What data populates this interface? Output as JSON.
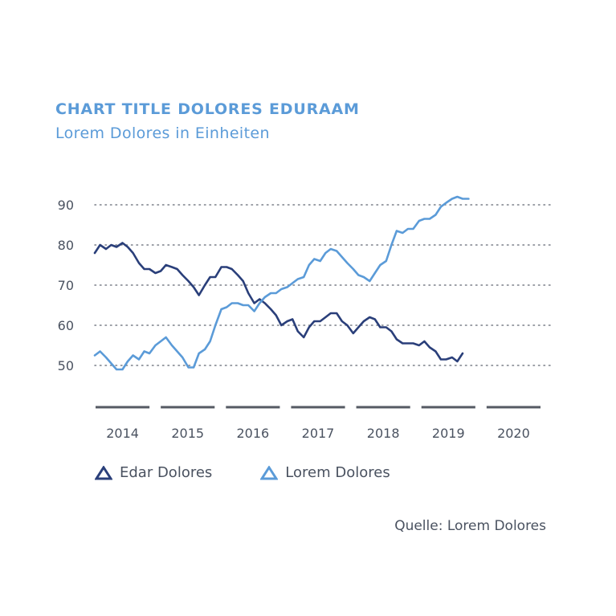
{
  "title": "CHART TITLE DOLORES EDURAAM",
  "subtitle": "Lorem Dolores in Einheiten",
  "source": "Quelle: Lorem Dolores",
  "colors": {
    "series1": "#2a3f7a",
    "series2": "#5b9bd8",
    "axis": "#4a5260",
    "grid": "#7a7f88"
  },
  "chart_data": {
    "type": "line",
    "title": "CHART TITLE DOLORES EDURAAM",
    "subtitle": "Lorem Dolores in Einheiten",
    "xlabel": "",
    "ylabel": "",
    "x_ticks": [
      "2014",
      "2015",
      "2016",
      "2017",
      "2018",
      "2019",
      "2020"
    ],
    "xlim": [
      2014.0,
      2020.92
    ],
    "y_ticks": [
      50,
      60,
      70,
      80,
      90
    ],
    "ylim": [
      40,
      95
    ],
    "grid": "horizontal dotted",
    "legend_position": "bottom",
    "series": [
      {
        "name": "Edar Dolores",
        "color": "#2a3f7a",
        "marker": "triangle",
        "x": [
          2014.0,
          2014.08,
          2014.17,
          2014.25,
          2014.33,
          2014.42,
          2014.5,
          2014.58,
          2014.67,
          2014.75,
          2014.83,
          2014.92,
          2015.0,
          2015.08,
          2015.17,
          2015.25,
          2015.33,
          2015.42,
          2015.5,
          2015.58,
          2015.67,
          2015.75,
          2015.83,
          2015.92,
          2016.0,
          2016.08,
          2016.17,
          2016.25,
          2016.33,
          2016.42,
          2016.5,
          2016.58,
          2016.67,
          2016.75,
          2016.83,
          2016.92,
          2017.0,
          2017.08,
          2017.17,
          2017.25,
          2017.33,
          2017.42,
          2017.5,
          2017.58,
          2017.67,
          2017.75,
          2017.83,
          2017.92,
          2018.0,
          2018.08,
          2018.17,
          2018.25,
          2018.33,
          2018.42,
          2018.5,
          2018.58,
          2018.67,
          2018.75,
          2018.83,
          2018.92,
          2019.0,
          2019.08,
          2019.17,
          2019.25,
          2019.33,
          2019.42,
          2019.5,
          2019.58,
          2019.67,
          2019.75,
          2019.83,
          2019.92,
          2020.0,
          2020.08,
          2020.17,
          2020.25,
          2020.33,
          2020.42,
          2020.5,
          2020.58,
          2020.67
        ],
        "values": [
          78.0,
          80.0,
          79.0,
          80.0,
          79.5,
          80.5,
          79.5,
          78.0,
          75.5,
          74.0,
          74.0,
          73.0,
          73.5,
          75.0,
          74.5,
          74.0,
          72.5,
          71.0,
          69.5,
          67.5,
          70.0,
          72.0,
          72.0,
          74.5,
          74.5,
          74.0,
          72.5,
          71.0,
          68.0,
          65.5,
          66.5,
          65.5,
          64.0,
          62.5,
          60.0,
          61.0,
          61.5,
          58.5,
          57.0,
          59.5,
          61.0,
          61.0,
          62.0,
          63.0,
          63.0,
          61.0,
          60.0,
          58.0,
          59.5,
          61.0,
          62.0,
          61.5,
          59.5,
          59.5,
          58.5,
          56.5,
          55.5,
          55.5,
          55.5,
          55.0,
          56.0,
          54.5,
          53.5,
          51.5,
          51.5,
          52.0,
          51.0,
          53.0,
          null,
          null,
          null,
          null,
          null,
          null,
          null,
          null,
          null,
          null,
          null,
          null,
          null
        ]
      },
      {
        "name": "Lorem Dolores",
        "color": "#5b9bd8",
        "marker": "triangle",
        "x": [
          2014.0,
          2014.08,
          2014.17,
          2014.25,
          2014.33,
          2014.42,
          2014.5,
          2014.58,
          2014.67,
          2014.75,
          2014.83,
          2014.92,
          2015.0,
          2015.08,
          2015.17,
          2015.25,
          2015.33,
          2015.42,
          2015.5,
          2015.58,
          2015.67,
          2015.75,
          2015.83,
          2015.92,
          2016.0,
          2016.08,
          2016.17,
          2016.25,
          2016.33,
          2016.42,
          2016.5,
          2016.58,
          2016.67,
          2016.75,
          2016.83,
          2016.92,
          2017.0,
          2017.08,
          2017.17,
          2017.25,
          2017.33,
          2017.42,
          2017.5,
          2017.58,
          2017.67,
          2017.75,
          2017.83,
          2017.92,
          2018.0,
          2018.08,
          2018.17,
          2018.25,
          2018.33,
          2018.42,
          2018.5,
          2018.58,
          2018.67,
          2018.75,
          2018.83,
          2018.92,
          2019.0,
          2019.08,
          2019.17,
          2019.25,
          2019.33,
          2019.42,
          2019.5,
          2019.58,
          2019.67,
          2019.75,
          2019.83,
          2019.92,
          2020.0,
          2020.08,
          2020.17,
          2020.25,
          2020.33,
          2020.42,
          2020.5,
          2020.58,
          2020.67
        ],
        "values": [
          52.5,
          53.5,
          52.0,
          50.5,
          49.0,
          49.0,
          51.0,
          52.5,
          51.5,
          53.5,
          53.0,
          55.0,
          56.0,
          57.0,
          55.0,
          53.5,
          52.0,
          49.5,
          49.5,
          53.0,
          54.0,
          56.0,
          60.0,
          64.0,
          64.5,
          65.5,
          65.5,
          65.0,
          65.0,
          63.5,
          65.5,
          67.0,
          68.0,
          68.0,
          69.0,
          69.5,
          70.5,
          71.5,
          72.0,
          75.0,
          76.5,
          76.0,
          78.0,
          79.0,
          78.5,
          77.0,
          75.5,
          74.0,
          72.5,
          72.0,
          71.0,
          73.0,
          75.0,
          76.0,
          80.0,
          83.5,
          83.0,
          84.0,
          84.0,
          86.0,
          86.5,
          86.5,
          87.5,
          89.5,
          90.5,
          91.5,
          92.0,
          91.5,
          91.5,
          null,
          null,
          null,
          null,
          null,
          null,
          null,
          null,
          null,
          null,
          null,
          null
        ]
      }
    ]
  }
}
